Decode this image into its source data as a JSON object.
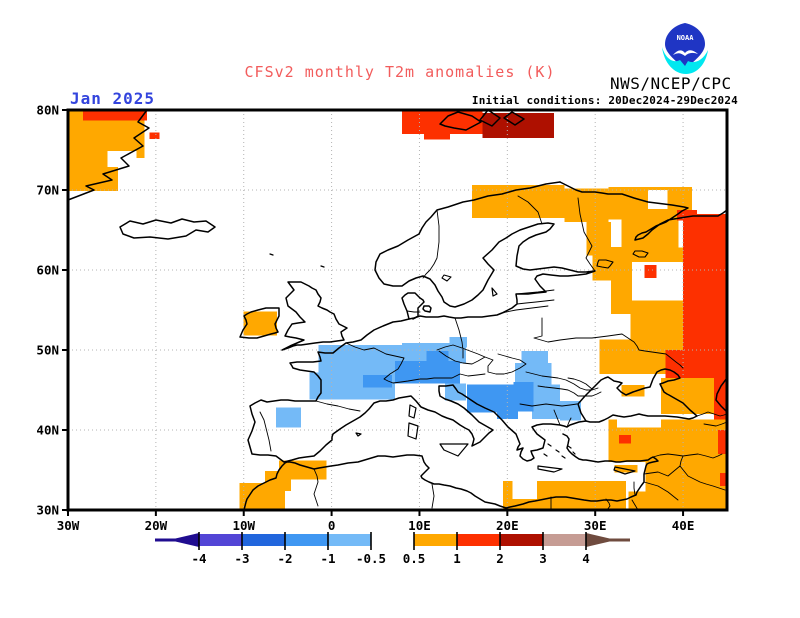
{
  "header": {
    "date_label": "Jan 2025",
    "date_color": "#3344dd",
    "title": "CFSv2 monthly T2m anomalies (K)",
    "title_color": "#f25c5c",
    "agency": "NWS/NCEP/CPC",
    "initial_conditions": "Initial conditions: 20Dec2024-29Dec2024",
    "logo_text": "NOAA",
    "logo_blue": "#1f35c4",
    "logo_cyan": "#00e8f0"
  },
  "chart_data": {
    "type": "heatmap",
    "title": "CFSv2 monthly T2m anomalies (K)",
    "unit": "K",
    "model": "CFSv2",
    "forecast_month": "Jan 2025",
    "initial_conditions": "20Dec2024-29Dec2024",
    "projection": "lat-lon",
    "lon_range": [
      -30,
      45
    ],
    "lat_range": [
      30,
      80
    ],
    "grid": true,
    "x_ticks": [
      {
        "lon": -30,
        "label": "30W"
      },
      {
        "lon": -20,
        "label": "20W"
      },
      {
        "lon": -10,
        "label": "10W"
      },
      {
        "lon": 0,
        "label": "0"
      },
      {
        "lon": 10,
        "label": "10E"
      },
      {
        "lon": 20,
        "label": "20E"
      },
      {
        "lon": 30,
        "label": "30E"
      },
      {
        "lon": 40,
        "label": "40E"
      }
    ],
    "y_ticks": [
      {
        "lat": 80,
        "label": "80N"
      },
      {
        "lat": 70,
        "label": "70N"
      },
      {
        "lat": 60,
        "label": "60N"
      },
      {
        "lat": 50,
        "label": "50N"
      },
      {
        "lat": 40,
        "label": "40N"
      },
      {
        "lat": 30,
        "label": "30N"
      }
    ],
    "colorbar": {
      "levels": [
        -4,
        -3,
        -2,
        -1,
        -0.5,
        0.5,
        1,
        2,
        3,
        4
      ],
      "labels": [
        "-4",
        "-3",
        "-2",
        "-1",
        "-0.5",
        "0.5",
        "1",
        "2",
        "3",
        "4"
      ],
      "bin_keys": [
        "-4..-3",
        "-3..-2",
        "-2..-1",
        "-1..-0.5",
        "-0.5..0.5",
        "0.5..1",
        "1..2",
        "2..3",
        "3..4"
      ],
      "bin_colors": [
        "#5345d6",
        "#2166dd",
        "#3f97f2",
        "#74baf7",
        "#ffffff",
        "#ffa800",
        "#fd3000",
        "#ae1000",
        "#c69c94"
      ],
      "below_color": "#200d90",
      "above_color": "#6f4b3f",
      "position": "bottom"
    },
    "cells_format": "[lon_west, lat_south, lon_east, lat_north, anomaly_bin_K]",
    "cells": [
      [
        -30,
        74,
        -21.3,
        80,
        "0.5..1"
      ],
      [
        -30,
        69.9,
        -24.3,
        74,
        "0.5..1"
      ],
      [
        -25.5,
        72.9,
        -22.2,
        74.9,
        "none"
      ],
      [
        -28.3,
        78.7,
        -21,
        80,
        "1..2"
      ],
      [
        -20.7,
        76.4,
        -19.6,
        77.2,
        "1..2"
      ],
      [
        8,
        77,
        17.2,
        80,
        "1..2"
      ],
      [
        10.5,
        76.3,
        13.5,
        77.4,
        "1..2"
      ],
      [
        17.2,
        76.5,
        25.3,
        79.6,
        "2..3"
      ],
      [
        -10,
        51.8,
        -6.2,
        54.8,
        "0.5..1"
      ],
      [
        16,
        66.5,
        26.5,
        70.6,
        "0.5..1"
      ],
      [
        26.5,
        66,
        31.5,
        70.2,
        "0.5..1"
      ],
      [
        31.5,
        66.3,
        41,
        70.4,
        "0.5..1"
      ],
      [
        36,
        67.6,
        38.2,
        70,
        "none"
      ],
      [
        29,
        61.8,
        31.8,
        66,
        "0.5..1"
      ],
      [
        29.7,
        58.7,
        34.2,
        62.9,
        "0.5..1"
      ],
      [
        33,
        62.8,
        39.5,
        66.3,
        "0.5..1"
      ],
      [
        31.8,
        50,
        40,
        62.8,
        "0.5..1"
      ],
      [
        34.2,
        56.2,
        40,
        61,
        "none"
      ],
      [
        30.5,
        51.3,
        34,
        54.5,
        "none"
      ],
      [
        35.6,
        59,
        37,
        60.6,
        "1..2"
      ],
      [
        39.3,
        66.2,
        41.6,
        67.5,
        "1..2"
      ],
      [
        40,
        50,
        45,
        67,
        "1..2"
      ],
      [
        30.5,
        47,
        40,
        51.3,
        "0.5..1"
      ],
      [
        38,
        46,
        45,
        50,
        "1..2"
      ],
      [
        33,
        44.2,
        35.6,
        45.6,
        "0.5..1"
      ],
      [
        37.5,
        42,
        43.5,
        46.5,
        "0.5..1"
      ],
      [
        43.5,
        41,
        45,
        47,
        "1..2"
      ],
      [
        31.5,
        36,
        45,
        41.3,
        "0.5..1"
      ],
      [
        32.5,
        40.3,
        37.5,
        41.5,
        "none"
      ],
      [
        32.7,
        38.3,
        34.1,
        39.4,
        "1..2"
      ],
      [
        44,
        37,
        45,
        40,
        "1..2"
      ],
      [
        35.7,
        30,
        45,
        36.3,
        "0.5..1"
      ],
      [
        33.8,
        30,
        35.7,
        32.3,
        "0.5..1"
      ],
      [
        32.2,
        34.7,
        34.8,
        35.6,
        "0.5..1"
      ],
      [
        44.2,
        33,
        45,
        34.6,
        "1..2"
      ],
      [
        19.5,
        30,
        33.5,
        33.6,
        "0.5..1"
      ],
      [
        20.6,
        31.4,
        23.4,
        33.6,
        "none"
      ],
      [
        -10.5,
        30,
        -5.3,
        33.4,
        "0.5..1"
      ],
      [
        -7.6,
        32.4,
        -4.6,
        34.9,
        "0.5..1"
      ],
      [
        -6,
        33.8,
        -0.6,
        36.2,
        "0.5..1"
      ],
      [
        -6.3,
        40.3,
        -3.5,
        42.8,
        "-1..-0.5"
      ],
      [
        -2.5,
        43.8,
        7.2,
        47.2,
        "-1..-0.5"
      ],
      [
        -1.5,
        47.2,
        8,
        50.6,
        "-1..-0.5"
      ],
      [
        8,
        48.3,
        15.3,
        50.9,
        "-1..-0.5"
      ],
      [
        13.4,
        50.3,
        15.4,
        51.6,
        "-1..-0.5"
      ],
      [
        21.6,
        48.4,
        24.6,
        49.9,
        "-1..-0.5"
      ],
      [
        12.9,
        43.7,
        15.3,
        45.8,
        "-1..-0.5"
      ],
      [
        20.9,
        45.6,
        25,
        48.4,
        "-1..-0.5"
      ],
      [
        22.8,
        41.4,
        26,
        45.7,
        "-1..-0.5"
      ],
      [
        26,
        41.2,
        28.4,
        43.6,
        "-1..-0.5"
      ],
      [
        3.6,
        45.3,
        6.9,
        46.9,
        "-2..-1"
      ],
      [
        7.2,
        45.8,
        14.6,
        48.6,
        "-2..-1"
      ],
      [
        10.8,
        48.6,
        13.3,
        49.9,
        "-2..-1"
      ],
      [
        15.4,
        42.2,
        20.7,
        45.7,
        "-2..-1"
      ],
      [
        20.7,
        42.3,
        23,
        46,
        "-2..-1"
      ],
      [
        18.8,
        41.4,
        21.2,
        42.3,
        "-2..-1"
      ]
    ]
  }
}
